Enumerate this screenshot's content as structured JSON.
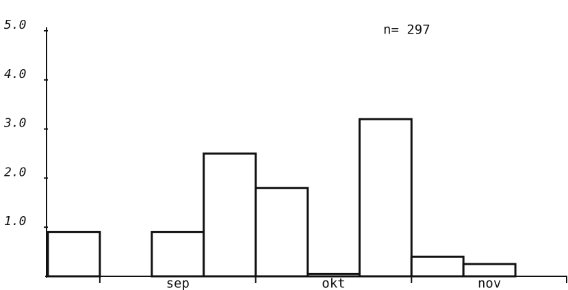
{
  "chart_data": {
    "type": "bar",
    "annotation": "n= 297",
    "categories": [
      null,
      null,
      "sep",
      null,
      null,
      "okt",
      null,
      null,
      "nov",
      null
    ],
    "values": [
      0.9,
      0,
      0.9,
      2.5,
      1.8,
      0.05,
      3.2,
      0.4,
      0.25,
      0
    ],
    "color": "#ffffff",
    "ylim": [
      0,
      5
    ],
    "yticks": [
      {
        "value": 1,
        "label": "1.0"
      },
      {
        "value": 2,
        "label": "2.0"
      },
      {
        "value": 3,
        "label": "3.0"
      },
      {
        "value": 4,
        "label": "4.0"
      },
      {
        "value": 5,
        "label": "5.0"
      }
    ],
    "grid": false
  }
}
